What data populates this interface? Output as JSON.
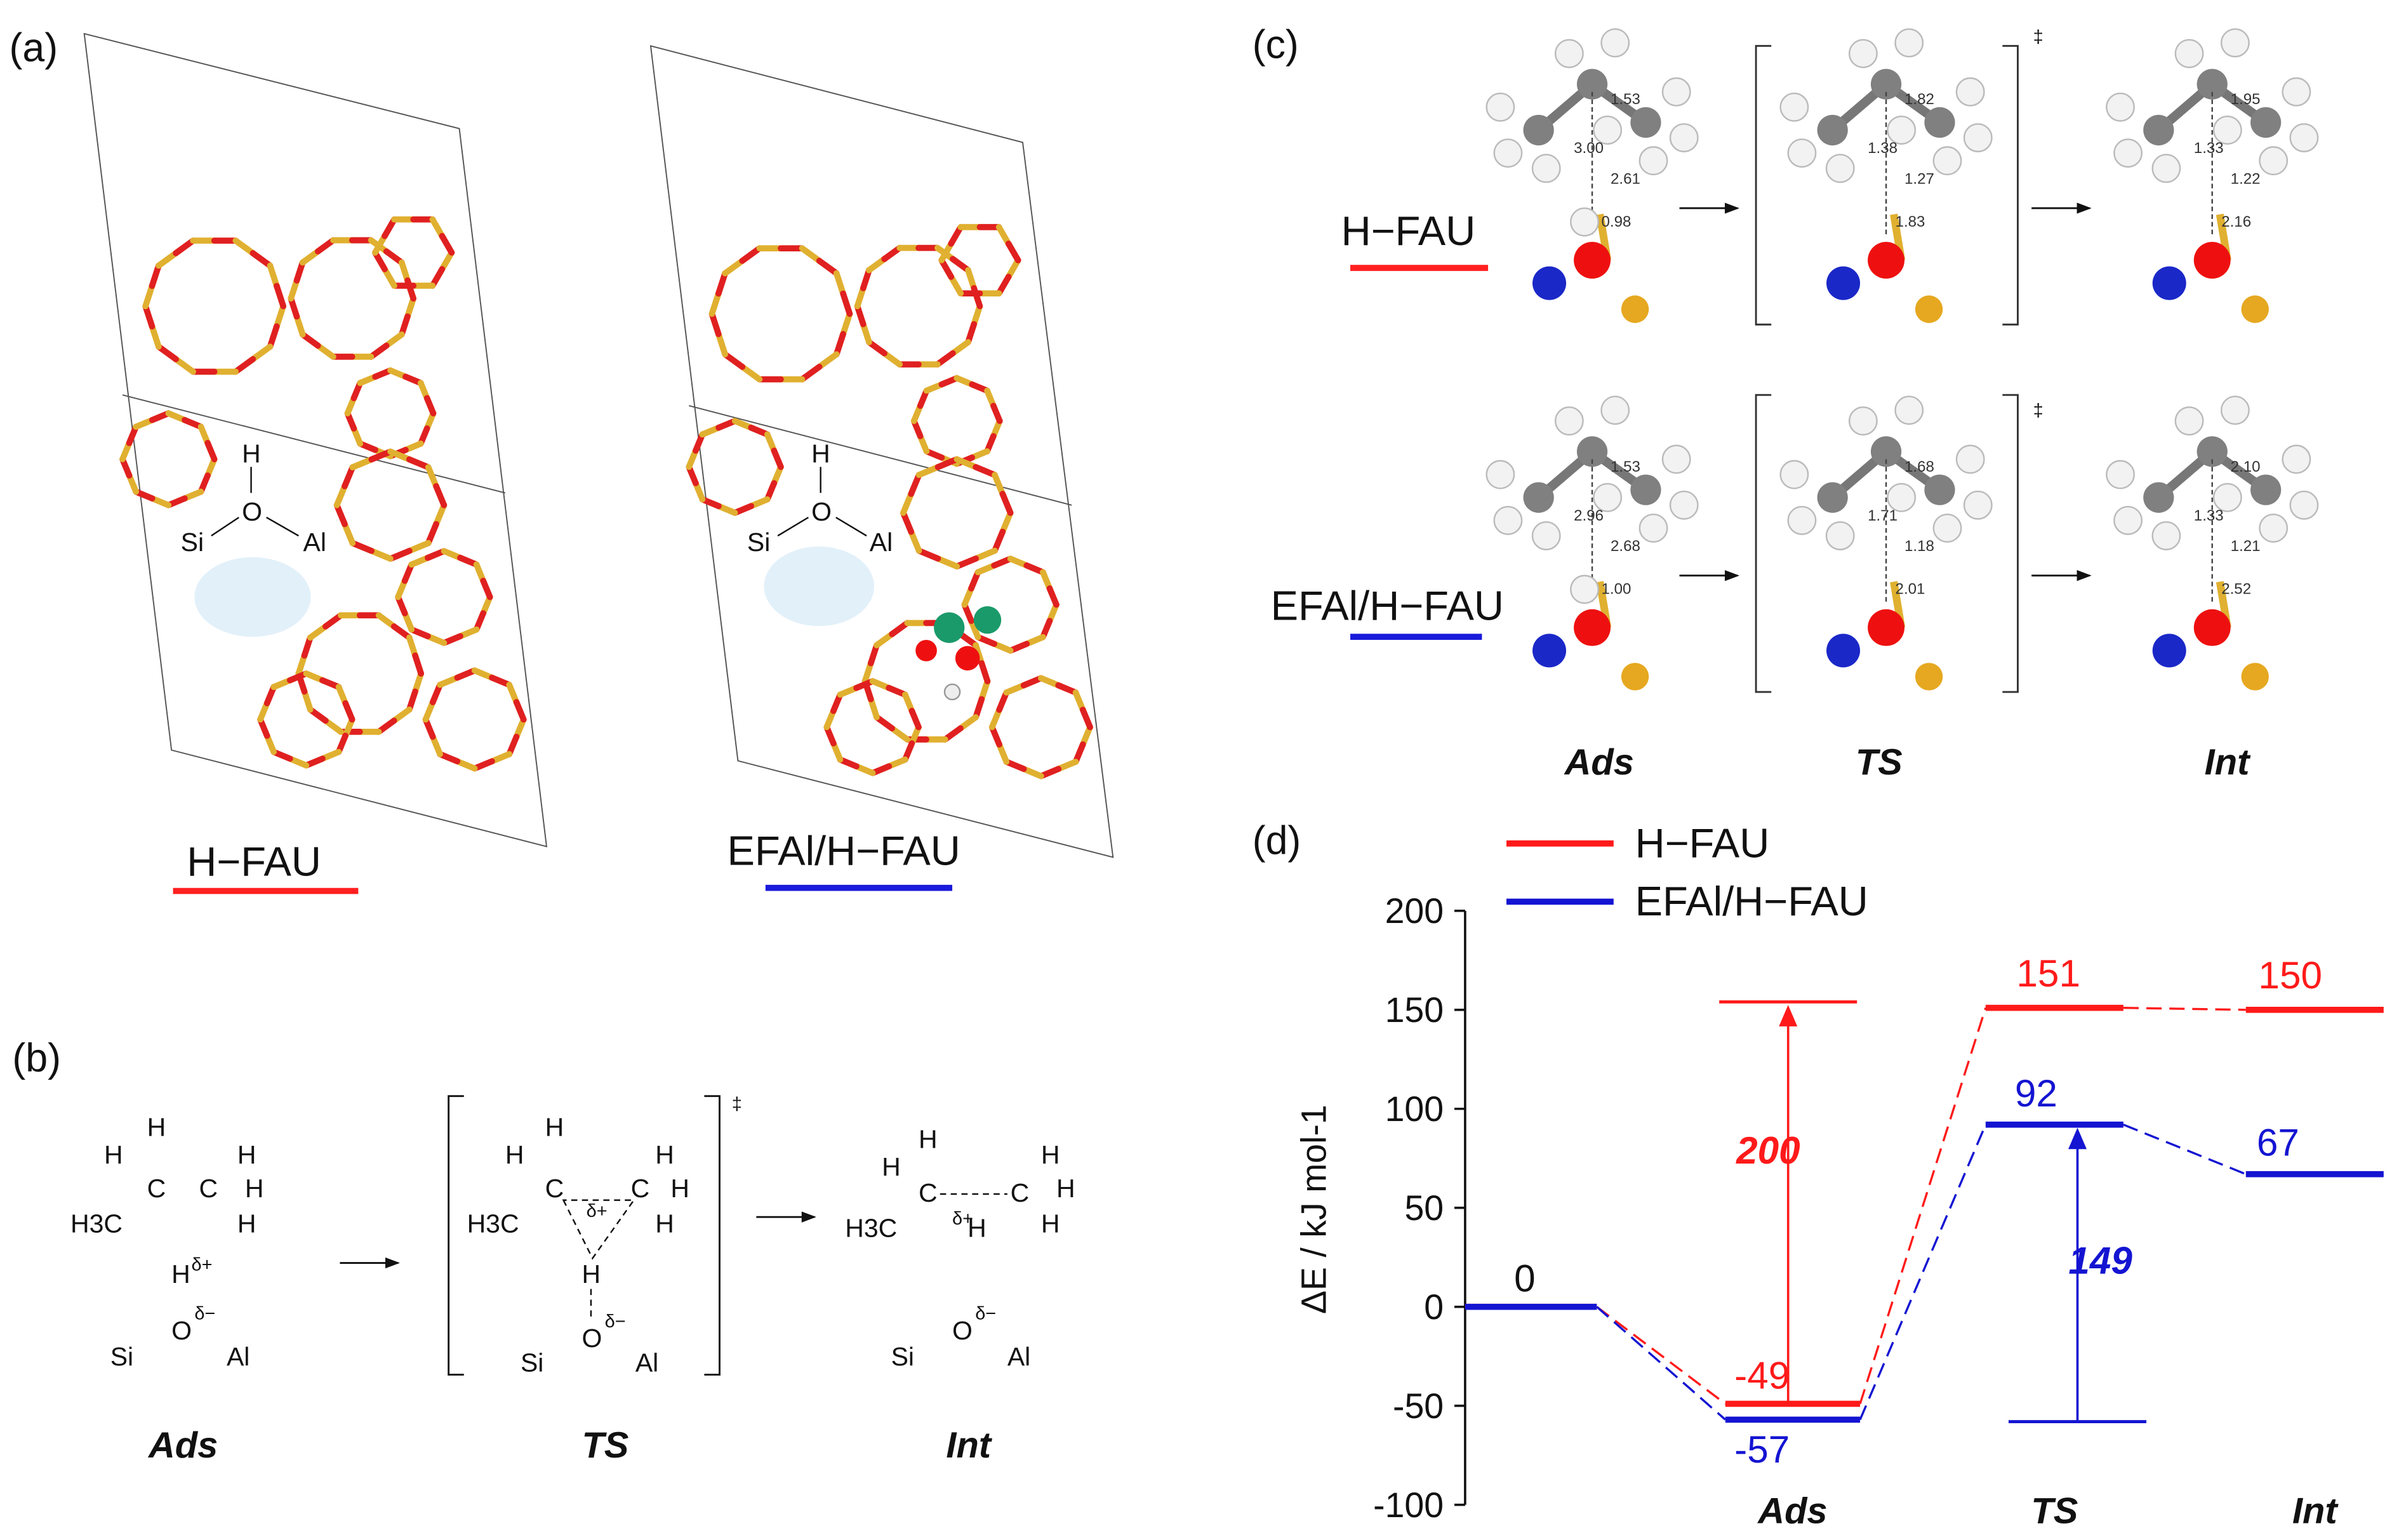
{
  "panels": {
    "a": {
      "label": "(a)",
      "structures": [
        {
          "name": "H−FAU",
          "color": "#ff2020"
        },
        {
          "name": "EFAl/H−FAU",
          "color": "#1a1adc"
        }
      ],
      "inset": {
        "h": "H",
        "o": "O",
        "si": "Si",
        "al": "Al"
      }
    },
    "b": {
      "label": "(b)",
      "states": [
        "Ads",
        "TS",
        "Int"
      ],
      "dagger": "‡",
      "atoms": {
        "h": "H",
        "c": "C",
        "h3c": "H3C",
        "o": "O",
        "si": "Si",
        "al": "Al",
        "delta_plus": "δ+",
        "delta_minus": "δ−"
      }
    },
    "c": {
      "label": "(c)",
      "states": [
        "Ads",
        "TS",
        "Int"
      ],
      "dagger": "‡",
      "rows": [
        {
          "name": "H−FAU",
          "color": "#ff2020",
          "ads": [
            "1.53",
            "3.00",
            "2.61",
            "0.98"
          ],
          "ts": [
            "1.82",
            "1.38",
            "1.27",
            "1.83"
          ],
          "int": [
            "1.95",
            "1.33",
            "1.22",
            "2.16"
          ]
        },
        {
          "name": "EFAl/H−FAU",
          "color": "#1a1adc",
          "ads": [
            "1.53",
            "2.96",
            "2.68",
            "1.00"
          ],
          "ts": [
            "1.68",
            "1.71",
            "1.18",
            "2.01"
          ],
          "int": [
            "2.10",
            "1.33",
            "1.21",
            "2.52"
          ]
        }
      ],
      "atom_colors": {
        "C": "#808080",
        "H": "#f2f2f2",
        "O": "#ee1010",
        "Al": "#1a28c8",
        "Si": "#e6a820"
      }
    },
    "d": {
      "label": "(d)"
    }
  },
  "chart_data": {
    "type": "line",
    "title": "",
    "ylabel": "ΔE / kJ mol-1",
    "ylim": [
      -100,
      200
    ],
    "yticks": [
      200,
      150,
      100,
      50,
      0,
      -50,
      -100
    ],
    "categories": [
      "",
      "Ads",
      "TS",
      "Int"
    ],
    "legend": "top-left",
    "grid": false,
    "series": [
      {
        "name": "H−FAU",
        "color": "#ff1a1a",
        "values": [
          0,
          -49,
          151,
          150
        ],
        "labels": [
          "0",
          "-49",
          "151",
          "150"
        ]
      },
      {
        "name": "EFAl/H−FAU",
        "color": "#1414d2",
        "values": [
          0,
          -57,
          92,
          67
        ],
        "labels": [
          "0",
          "-57",
          "92",
          "67"
        ]
      }
    ],
    "annotations": [
      {
        "text": "200",
        "series": "H−FAU",
        "from": -49,
        "to": 154,
        "color": "#ff1a1a"
      },
      {
        "text": "149",
        "series": "EFAl/H−FAU",
        "from": -57,
        "to": 92,
        "color": "#1414d2"
      }
    ]
  }
}
